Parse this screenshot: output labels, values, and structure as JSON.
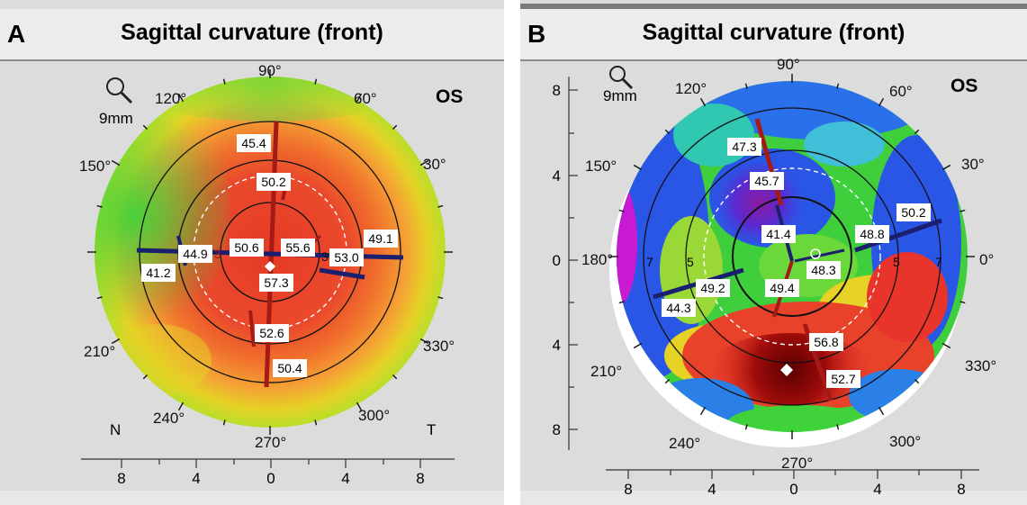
{
  "panels": [
    {
      "id": "A",
      "letter": "A",
      "title": "Sagittal curvature (front)",
      "eye": "OS",
      "scale_label": "9mm",
      "angle_labels": {
        "a90": "90°",
        "a60": "60°",
        "a30": "30°",
        "a120": "120°",
        "a150": "150°",
        "a210": "210°",
        "a240": "240°",
        "a270": "270°",
        "a300": "300°",
        "a330": "330°"
      },
      "side_labels": {
        "nasal": "N",
        "temporal": "T"
      },
      "ring_labels": {
        "left3": "3",
        "right3": "3"
      },
      "value_boxes": {
        "v454": "45.4",
        "v502": "50.2",
        "v449": "44.9",
        "v412": "41.2",
        "v506": "50.6",
        "v556": "55.6",
        "v491": "49.1",
        "v530": "53.0",
        "v573": "57.3",
        "v526": "52.6",
        "v504": "50.4"
      },
      "axis_x_ticks": [
        "8",
        "4",
        "0",
        "4",
        "8"
      ]
    },
    {
      "id": "B",
      "letter": "B",
      "title": "Sagittal curvature (front)",
      "eye": "OS",
      "scale_label": "9mm",
      "angle_labels": {
        "a90": "90°",
        "a60": "60°",
        "a30": "30°",
        "a0": "0°",
        "a120": "120°",
        "a150": "150°",
        "a180": "180°",
        "a210": "210°",
        "a240": "240°",
        "a270": "270°",
        "a300": "300°",
        "a330": "330°"
      },
      "ring_labels": {
        "l7": "7",
        "l5": "5",
        "r5": "5",
        "r7": "7"
      },
      "value_boxes": {
        "v473": "47.3",
        "v457": "45.7",
        "v414": "41.4",
        "v502": "50.2",
        "v488": "48.8",
        "v483": "48.3",
        "v492": "49.2",
        "v494": "49.4",
        "v443": "44.3",
        "v568": "56.8",
        "v527": "52.7"
      },
      "axis_y_ticks": [
        "8",
        "4",
        "0",
        "4",
        "8"
      ],
      "axis_x_ticks": [
        "8",
        "4",
        "0",
        "4",
        "8"
      ]
    }
  ],
  "colors": {
    "red": "#e8462a",
    "orange": "#f07a2a",
    "yellow": "#e6d21e",
    "green": "#3fd23a",
    "blue": "#2a56e6",
    "darkred": "#7a0a08",
    "magenta": "#c81ad2",
    "meridian_red": "#a51a14",
    "meridian_blue": "#1a1f6e"
  }
}
